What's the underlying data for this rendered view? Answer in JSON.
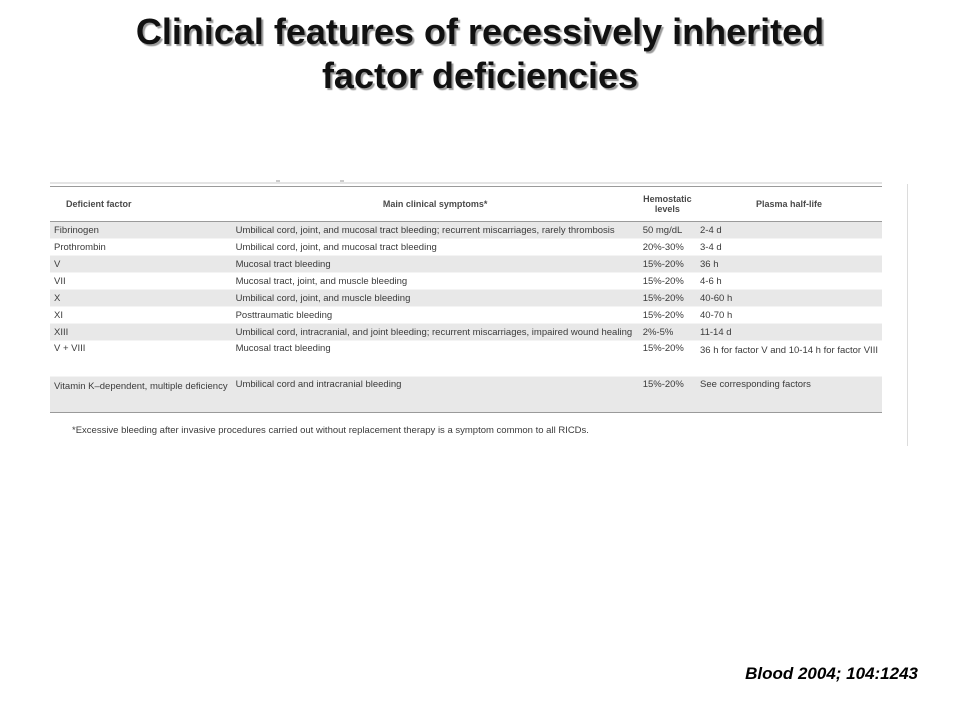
{
  "slide": {
    "title_line1": "Clinical features of recessively inherited",
    "title_line2": "factor deficiencies",
    "citation": "Blood 2004; 104:1243"
  },
  "table": {
    "headers": {
      "factor": "Deficient factor",
      "symptoms": "Main clinical symptoms*",
      "hemostatic": "Hemostatic levels",
      "halflife": "Plasma half-life"
    },
    "rows": [
      {
        "factor": "Fibrinogen",
        "symptoms": "Umbilical cord, joint, and mucosal tract bleeding; recurrent miscarriages, rarely thrombosis",
        "hemostatic": "50 mg/dL",
        "halflife": "2-4 d"
      },
      {
        "factor": "Prothrombin",
        "symptoms": "Umbilical cord, joint, and mucosal tract bleeding",
        "hemostatic": "20%-30%",
        "halflife": "3-4 d"
      },
      {
        "factor": "V",
        "symptoms": "Mucosal tract bleeding",
        "hemostatic": "15%-20%",
        "halflife": "36 h"
      },
      {
        "factor": "VII",
        "symptoms": "Mucosal tract, joint, and muscle bleeding",
        "hemostatic": "15%-20%",
        "halflife": "4-6 h"
      },
      {
        "factor": "X",
        "symptoms": "Umbilical cord, joint, and muscle bleeding",
        "hemostatic": "15%-20%",
        "halflife": "40-60 h"
      },
      {
        "factor": "XI",
        "symptoms": "Posttraumatic bleeding",
        "hemostatic": "15%-20%",
        "halflife": "40-70 h"
      },
      {
        "factor": "XIII",
        "symptoms": "Umbilical cord, intracranial, and joint bleeding; recurrent miscarriages, impaired wound healing",
        "hemostatic": "2%-5%",
        "halflife": "11-14 d"
      },
      {
        "factor": "V + VIII",
        "symptoms": "Mucosal tract bleeding",
        "hemostatic": "15%-20%",
        "halflife": "36 h for factor V and\n   10-14 h for factor VIII"
      },
      {
        "factor": "Vitamin K–dependent,\n   multiple deficiency",
        "symptoms": "Umbilical cord and intracranial bleeding",
        "hemostatic": "15%-20%",
        "halflife": "See corresponding factors"
      }
    ],
    "footnote": "*Excessive bleeding after invasive procedures carried out without replacement therapy is a symptom common to all RICDs."
  }
}
